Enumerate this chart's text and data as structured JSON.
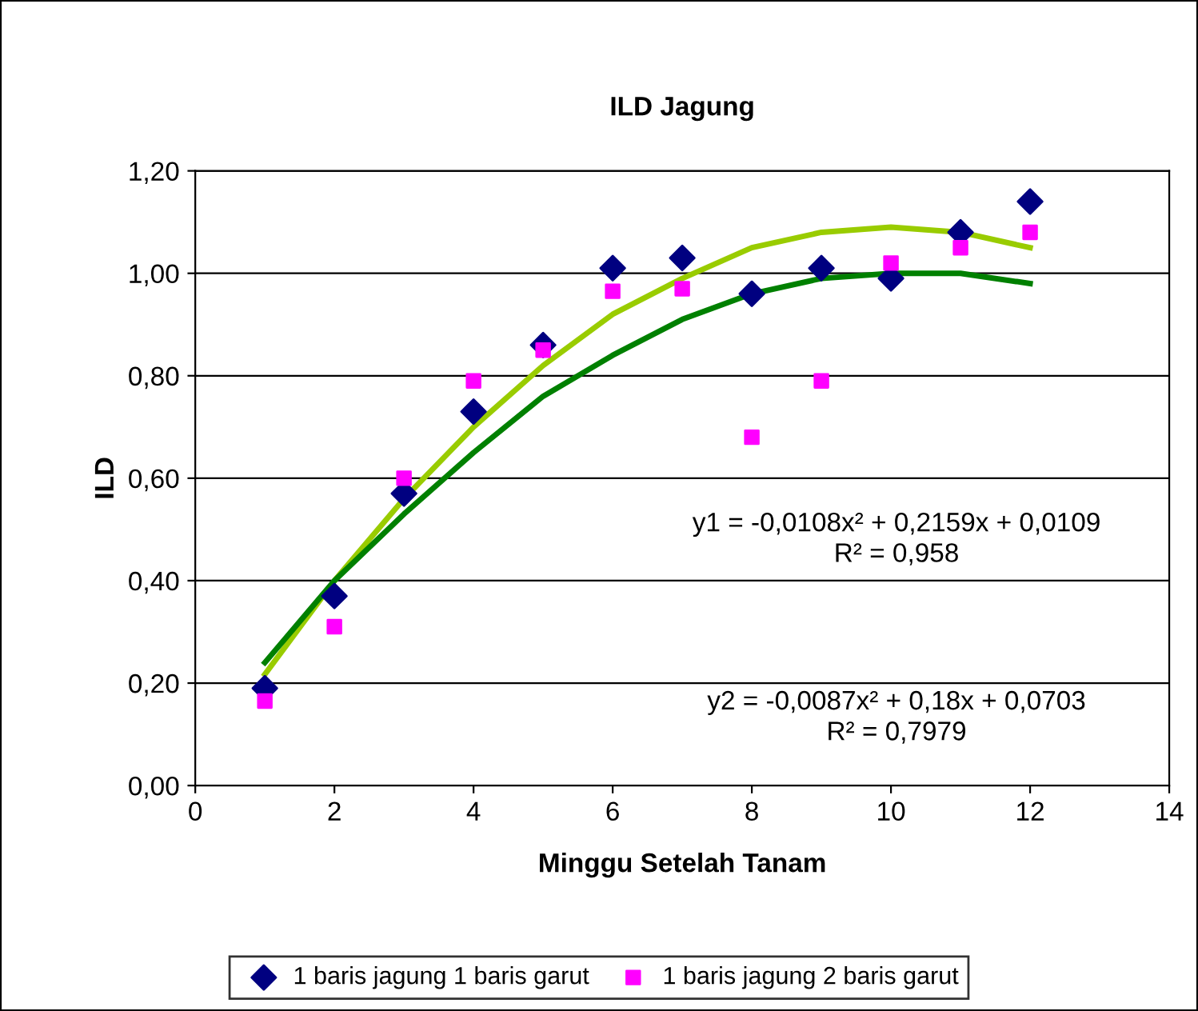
{
  "chart_data": {
    "type": "scatter",
    "title": "ILD Jagung",
    "xlabel": "Minggu Setelah Tanam",
    "ylabel": "ILD",
    "xlim": [
      0,
      14
    ],
    "xticks": [
      0,
      2,
      4,
      6,
      8,
      10,
      12,
      14
    ],
    "ylim": [
      0,
      1.2
    ],
    "yticks": [
      {
        "value": 0,
        "label": "0,00"
      },
      {
        "value": 0.2,
        "label": "0,20"
      },
      {
        "value": 0.4,
        "label": "0,40"
      },
      {
        "value": 0.6,
        "label": "0,60"
      },
      {
        "value": 0.8,
        "label": "0,80"
      },
      {
        "value": 1.0,
        "label": "1,00"
      },
      {
        "value": 1.2,
        "label": "1,20"
      }
    ],
    "grid": "y",
    "legend": "bottom",
    "series": [
      {
        "type": "line",
        "color": "#99cc00",
        "x": [
          1,
          2,
          3,
          4,
          5,
          6,
          7,
          8,
          9,
          10,
          11,
          12
        ],
        "values": [
          0.217,
          0.4,
          0.56,
          0.7,
          0.82,
          0.92,
          0.99,
          1.05,
          1.08,
          1.09,
          1.08,
          1.05
        ],
        "marker": "none"
      },
      {
        "type": "line",
        "color": "#008000",
        "x": [
          1,
          2,
          3,
          4,
          5,
          6,
          7,
          8,
          9,
          10,
          11,
          12
        ],
        "values": [
          0.24,
          0.4,
          0.53,
          0.65,
          0.76,
          0.84,
          0.91,
          0.96,
          0.99,
          1.0,
          1.0,
          0.98
        ],
        "marker": "none"
      },
      {
        "name": "1 baris jagung 1 baris garut",
        "color": "#000080",
        "marker": "diamond",
        "x": [
          1,
          2,
          3,
          4,
          5,
          6,
          7,
          8,
          9,
          10,
          11,
          12
        ],
        "values": [
          0.19,
          0.37,
          0.57,
          0.73,
          0.86,
          1.01,
          1.03,
          0.96,
          1.01,
          0.99,
          1.08,
          1.14
        ]
      },
      {
        "name": "1 baris jagung 2 baris garut",
        "color": "#ff00ff",
        "marker": "square",
        "x": [
          1,
          2,
          3,
          4,
          5,
          6,
          7,
          8,
          9,
          10,
          11,
          12
        ],
        "values": [
          0.165,
          0.31,
          0.6,
          0.79,
          0.85,
          0.965,
          0.97,
          0.68,
          0.79,
          1.02,
          1.05,
          1.08
        ]
      }
    ],
    "annotations": [
      "y1 = -0,0108x² + 0,2159x + 0,0109\nR² = 0,958",
      "y2 = -0,0087x² + 0,18x + 0,0703\nR² = 0,7979"
    ]
  }
}
